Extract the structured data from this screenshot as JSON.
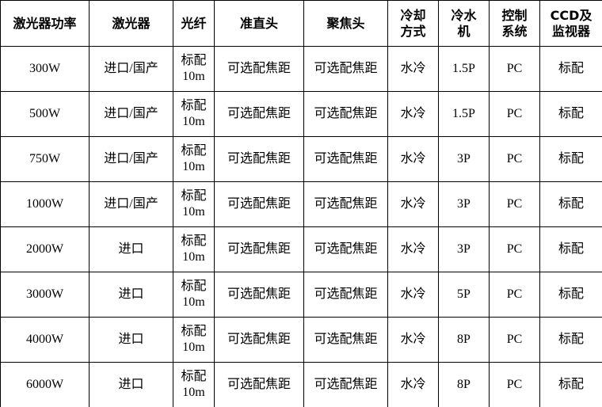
{
  "table": {
    "header": [
      "激光器功率",
      "激光器",
      "光纤",
      "准直头",
      "聚焦头",
      "冷却方式",
      "冷水机",
      "控制系统",
      "CCD及监视器"
    ],
    "rows": [
      [
        "300W",
        "进口/国产",
        "标配10m",
        "可选配焦距",
        "可选配焦距",
        "水冷",
        "1.5P",
        "PC",
        "标配"
      ],
      [
        "500W",
        "进口/国产",
        "标配10m",
        "可选配焦距",
        "可选配焦距",
        "水冷",
        "1.5P",
        "PC",
        "标配"
      ],
      [
        "750W",
        "进口/国产",
        "标配10m",
        "可选配焦距",
        "可选配焦距",
        "水冷",
        "3P",
        "PC",
        "标配"
      ],
      [
        "1000W",
        "进口/国产",
        "标配10m",
        "可选配焦距",
        "可选配焦距",
        "水冷",
        "3P",
        "PC",
        "标配"
      ],
      [
        "2000W",
        "进口",
        "标配10m",
        "可选配焦距",
        "可选配焦距",
        "水冷",
        "3P",
        "PC",
        "标配"
      ],
      [
        "3000W",
        "进口",
        "标配10m",
        "可选配焦距",
        "可选配焦距",
        "水冷",
        "5P",
        "PC",
        "标配"
      ],
      [
        "4000W",
        "进口",
        "标配10m",
        "可选配焦距",
        "可选配焦距",
        "水冷",
        "8P",
        "PC",
        "标配"
      ],
      [
        "6000W",
        "进口",
        "标配10m",
        "可选配焦距",
        "可选配焦距",
        "水冷",
        "8P",
        "PC",
        "标配"
      ]
    ]
  }
}
